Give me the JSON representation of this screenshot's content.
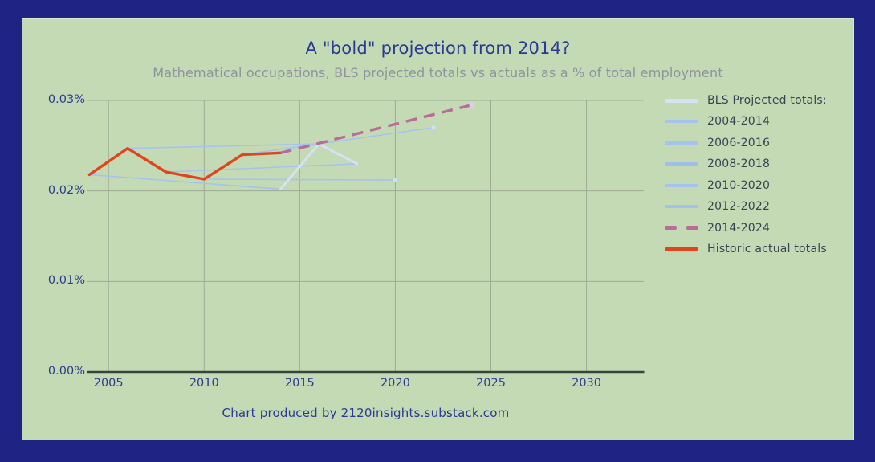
{
  "header": {
    "title": "A \"bold\" projection from 2014?",
    "subtitle": "Mathematical occupations, BLS projected totals vs actuals as a % of total employment"
  },
  "footer": {
    "credit": "Chart produced by 2120insights.substack.com"
  },
  "colors": {
    "background": "#1f2384",
    "panel": "#c3dab5",
    "grid": "#9dab92",
    "axis": "#39443a",
    "title": "#2b3a94",
    "subtitle": "#8e939d",
    "tick_label": "#2e3c90",
    "legend_text": "#3b4353",
    "footer": "#2b3a94",
    "projection_blue": "#a6c3ed",
    "projection_pale": "#d5e2f4",
    "projection_pink": "#b96b9a",
    "actual_orange": "#e0451c"
  },
  "legend": {
    "items": [
      {
        "label": "BLS Projected totals:",
        "color": "#d5e2f4",
        "style": "solid",
        "thickness": 5
      },
      {
        "label": "2004-2014",
        "color": "#a6c3ed",
        "style": "solid",
        "thickness": 4
      },
      {
        "label": "2006-2016",
        "color": "#a6c3ed",
        "style": "solid",
        "thickness": 4
      },
      {
        "label": "2008-2018",
        "color": "#9fbfea",
        "style": "solid",
        "thickness": 4
      },
      {
        "label": "2010-2020",
        "color": "#a6c3ed",
        "style": "solid",
        "thickness": 4
      },
      {
        "label": "2012-2022",
        "color": "#a3c1ec",
        "style": "solid",
        "thickness": 4
      },
      {
        "label": "2014-2024",
        "color": "#b96b9a",
        "style": "dashed",
        "thickness": 5
      },
      {
        "label": "Historic actual totals",
        "color": "#e0451c",
        "style": "solid",
        "thickness": 5
      }
    ]
  },
  "chart_data": {
    "type": "line",
    "title": "A \"bold\" projection from 2014?",
    "subtitle": "Mathematical occupations, BLS projected totals vs actuals as a % of total employment",
    "xlabel": "",
    "ylabel": "% of total employment",
    "grid": true,
    "legend_position": "right",
    "xlim": [
      2003.9,
      2033
    ],
    "ylim": [
      0,
      0.03
    ],
    "x_ticks": [
      {
        "value": 2005,
        "label": "2005"
      },
      {
        "value": 2010,
        "label": "2010"
      },
      {
        "value": 2015,
        "label": "2015"
      },
      {
        "value": 2020,
        "label": "2020"
      },
      {
        "value": 2025,
        "label": "2025"
      },
      {
        "value": 2030,
        "label": "2030"
      }
    ],
    "y_ticks": [
      {
        "value": 0,
        "label": "0.00%"
      },
      {
        "value": 0.01,
        "label": "0.01%"
      },
      {
        "value": 0.02,
        "label": "0.02%"
      },
      {
        "value": 0.03,
        "label": "0.03%"
      }
    ],
    "series": [
      {
        "name": "2004-2014",
        "kind": "projection",
        "color": "#a6c3ed",
        "width": 1.6,
        "points": [
          [
            2004,
            0.0218
          ],
          [
            2014,
            0.0202
          ]
        ]
      },
      {
        "name": "2006-2016",
        "kind": "projection",
        "color": "#a6c3ed",
        "width": 1.6,
        "points": [
          [
            2006,
            0.0247
          ],
          [
            2016,
            0.0252
          ]
        ]
      },
      {
        "name": "2008-2018",
        "kind": "projection",
        "color": "#a6c3ed",
        "width": 1.6,
        "points": [
          [
            2008,
            0.0221
          ],
          [
            2018,
            0.023
          ]
        ]
      },
      {
        "name": "2010-2020",
        "kind": "projection",
        "color": "#a6c3ed",
        "width": 1.6,
        "end_marker": true,
        "marker_color": "#cfdff6",
        "marker_r": 2.7,
        "points": [
          [
            2010,
            0.0213
          ],
          [
            2020,
            0.0212
          ]
        ]
      },
      {
        "name": "2012-2022",
        "kind": "projection",
        "color": "#a6c3ed",
        "width": 1.6,
        "end_marker": true,
        "marker_color": "#cfdff6",
        "marker_r": 2.7,
        "points": [
          [
            2012,
            0.024
          ],
          [
            2022,
            0.027
          ]
        ]
      },
      {
        "name": "BLS Projected totals",
        "kind": "projection-endpoints",
        "color": "#d5e2f4",
        "width": 3,
        "points": [
          [
            2014,
            0.0202
          ],
          [
            2016,
            0.0252
          ],
          [
            2018,
            0.023
          ]
        ]
      },
      {
        "name": "Historic actual totals",
        "kind": "actual",
        "color": "#e0451c",
        "width": 3.4,
        "points": [
          [
            2004,
            0.0218
          ],
          [
            2006,
            0.0247
          ],
          [
            2008,
            0.0221
          ],
          [
            2010,
            0.0213
          ],
          [
            2012,
            0.024
          ],
          [
            2014,
            0.0242
          ]
        ]
      },
      {
        "name": "2014-2024",
        "kind": "projection",
        "color": "#b96b9a",
        "width": 3.4,
        "dash": "14 9",
        "end_marker": true,
        "marker_color": "#d9d2ea",
        "marker_r": 3.2,
        "points": [
          [
            2014,
            0.0242
          ],
          [
            2024,
            0.0295
          ]
        ]
      }
    ]
  }
}
